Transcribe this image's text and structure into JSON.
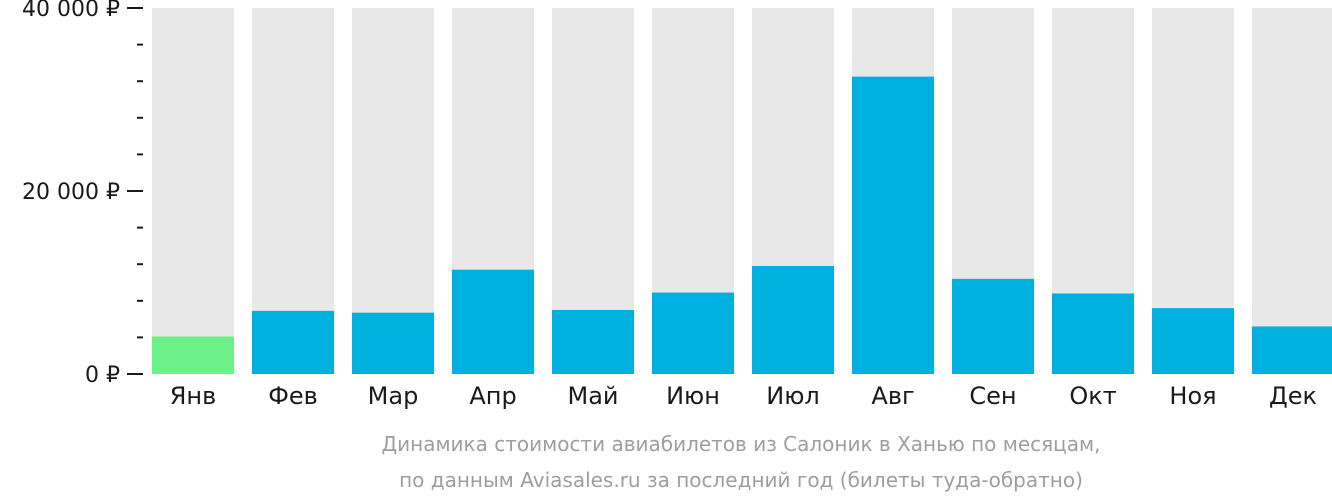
{
  "chart_data": {
    "type": "bar",
    "categories": [
      "Янв",
      "Фев",
      "Мар",
      "Апр",
      "Май",
      "Июн",
      "Июл",
      "Авг",
      "Сен",
      "Окт",
      "Ноя",
      "Дек"
    ],
    "values": [
      4100,
      6900,
      6700,
      11400,
      7000,
      8900,
      11800,
      32500,
      10400,
      8800,
      7200,
      5200
    ],
    "ylim": [
      0,
      40000
    ],
    "yticks": [
      {
        "value": 0,
        "label": "0 ₽"
      },
      {
        "value": 20000,
        "label": "20 000 ₽"
      },
      {
        "value": 40000,
        "label": "40 000 ₽"
      }
    ],
    "minor_step": 4000,
    "highlight_index": 0,
    "colors": {
      "bar": "#00b0de",
      "highlight": "#6cf08a",
      "track": "#e8e8e8",
      "axis_text": "#1a1a1a",
      "tick": "#1a1a1a"
    }
  },
  "caption": {
    "line1": "Динамика стоимости авиабилетов из Салоник в Ханью по месяцам,",
    "line2": "по данным Aviasales.ru за последний год (билеты туда-обратно)"
  }
}
